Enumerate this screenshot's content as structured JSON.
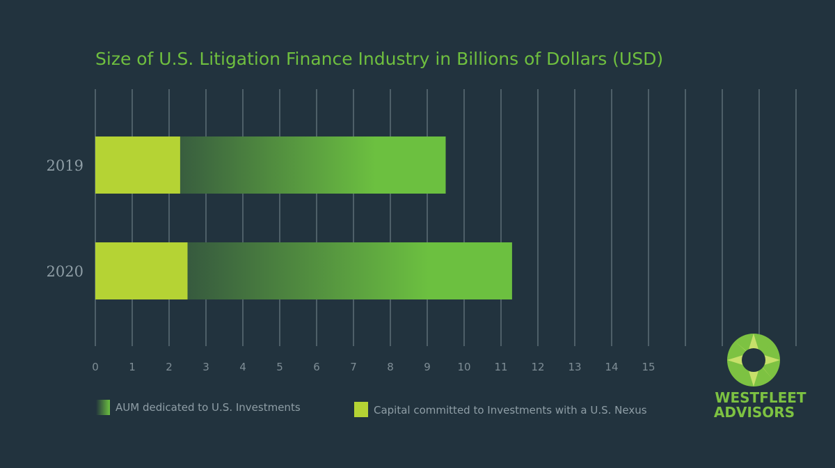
{
  "colors": {
    "background": "#22333e",
    "title": "#6fbf3f",
    "grid": "#5a6b74",
    "tick": "#7f8e96",
    "category_label": "#8f9ea6",
    "capital": "#b5d334",
    "aum_start": "#22333e",
    "aum_end": "#6cc040",
    "logo_green": "#7dc242",
    "logo_light": "#c7e06a"
  },
  "chart_data": {
    "type": "bar",
    "orientation": "horizontal",
    "stacked": false,
    "title": "Size of U.S. Litigation Finance Industry in Billions of Dollars (USD)",
    "categories": [
      "2019",
      "2020"
    ],
    "series": [
      {
        "name": "AUM dedicated to U.S. Investments",
        "values": [
          9.5,
          11.3
        ],
        "icon": "gradient-swatch"
      },
      {
        "name": "Capital committed to Investments with a U.S. Nexus",
        "values": [
          2.3,
          2.5
        ],
        "icon": "solid-swatch"
      }
    ],
    "xlim": [
      0,
      19
    ],
    "x_ticks": [
      "0",
      "1",
      "2",
      "3",
      "4",
      "5",
      "6",
      "7",
      "8",
      "9",
      "10",
      "11",
      "12",
      "13",
      "14",
      "15"
    ],
    "grid_lines": 20,
    "grid": true,
    "legend_position": "bottom-left"
  },
  "logo": {
    "line1": "WESTFLEET",
    "line2": "ADVISORS",
    "icon": "compass-rose-icon"
  }
}
